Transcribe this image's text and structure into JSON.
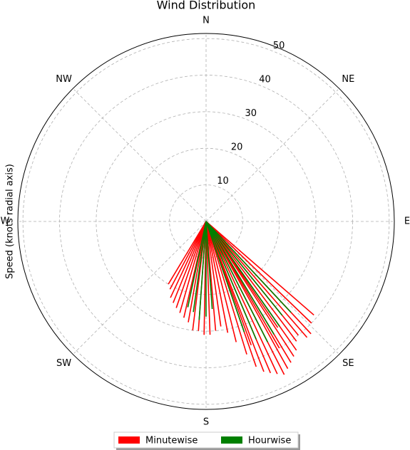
{
  "chart_data": {
    "type": "polar_lines",
    "title": "Wind Distribution",
    "y_label": "Speed (knots radial axis)",
    "ylim": [
      0,
      51
    ],
    "yticks": [
      10,
      20,
      30,
      40,
      50
    ],
    "xticks": [
      {
        "value": 0,
        "label": "N"
      },
      {
        "value": 45,
        "label": "NE"
      },
      {
        "value": 90,
        "label": "E"
      },
      {
        "value": 135,
        "label": "SE"
      },
      {
        "value": 180,
        "label": "S"
      },
      {
        "value": 225,
        "label": "SW"
      },
      {
        "value": 270,
        "label": "W"
      },
      {
        "value": 315,
        "label": "NW"
      }
    ],
    "grid": true,
    "legend": "bottom",
    "series": [
      {
        "name": "Minutewise",
        "color": "#ff0000",
        "x": [
          131,
          134,
          137,
          139,
          141,
          143,
          145,
          147,
          149,
          151,
          153,
          155,
          157,
          159,
          161,
          163,
          166,
          169,
          172,
          175,
          178,
          181,
          184,
          187,
          190,
          193,
          196,
          199,
          202,
          205,
          208,
          211,
          150,
          160,
          146
        ],
        "values": [
          39,
          40,
          42,
          42,
          40,
          41,
          43,
          44,
          45,
          46,
          47,
          46,
          45,
          44,
          42,
          38,
          34,
          31,
          29,
          30,
          31,
          31,
          30,
          30,
          28,
          27,
          26,
          25,
          24,
          23,
          21,
          20,
          40,
          36,
          35
        ]
      },
      {
        "name": "Hourwise",
        "color": "#008000",
        "x": [
          137,
          141,
          145,
          149,
          153,
          157,
          161,
          176,
          180,
          184,
          188,
          192
        ],
        "values": [
          34,
          33,
          35,
          36,
          37,
          35,
          32,
          24,
          26,
          27,
          25,
          24
        ]
      }
    ]
  }
}
